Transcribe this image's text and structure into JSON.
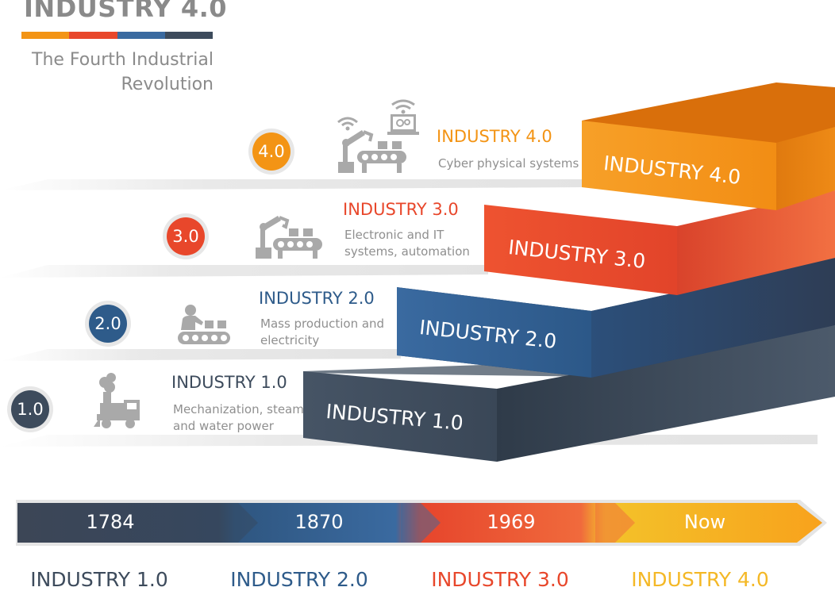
{
  "header": {
    "title": "INDUSTRY 4.0",
    "subtitle_line1": "The Fourth Industrial",
    "subtitle_line2": "Revolution"
  },
  "colors": {
    "gray_blue": "#3d4b5c",
    "blue": "#2e5b8a",
    "red": "#e8472b",
    "orange": "#f39415",
    "yellow": "#f4b826"
  },
  "stages": [
    {
      "badge": "1.0",
      "title": "INDUSTRY 1.0",
      "desc_line1": "Mechanization, steam",
      "desc_line2": "and water power",
      "step_label": "INDUSTRY 1.0",
      "icon": "steam-engine-icon"
    },
    {
      "badge": "2.0",
      "title": "INDUSTRY 2.0",
      "desc_line1": "Mass production and",
      "desc_line2": "electricity",
      "step_label": "INDUSTRY 2.0",
      "icon": "assembly-line-icon"
    },
    {
      "badge": "3.0",
      "title": "INDUSTRY 3.0",
      "desc_line1": "Electronic and IT",
      "desc_line2": "systems, automation",
      "step_label": "INDUSTRY 3.0",
      "icon": "robot-arm-icon"
    },
    {
      "badge": "4.0",
      "title": "INDUSTRY 4.0",
      "desc_line1": "Cyber physical systems",
      "desc_line2": "",
      "step_label": "INDUSTRY 4.0",
      "icon": "connected-robot-icon"
    }
  ],
  "timeline": {
    "years": [
      "1784",
      "1870",
      "1969",
      "Now"
    ],
    "labels": [
      "INDUSTRY 1.0",
      "INDUSTRY 2.0",
      "INDUSTRY 3.0",
      "INDUSTRY 4.0"
    ]
  }
}
